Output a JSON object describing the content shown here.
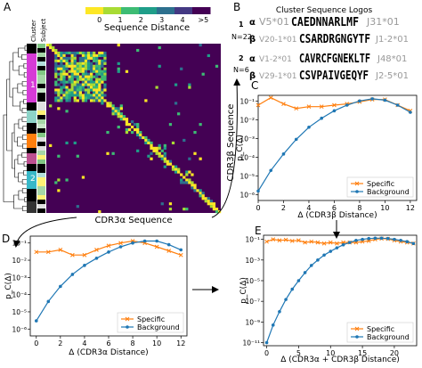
{
  "figure": {
    "panels": {
      "A": {
        "label": "A",
        "colorbar_title": "Sequence Distance",
        "colorbar_ticks": [
          "0",
          "1",
          "2",
          "3",
          "4",
          ">5"
        ],
        "colorbar_colors": [
          "#fde725",
          "#a8db34",
          "#3dbc74",
          "#1f9e89",
          "#2d708e",
          "#443983",
          "#440154"
        ],
        "column_labels": [
          "Cluster",
          "Subject"
        ],
        "cluster_markers": [
          "1",
          "2"
        ],
        "x_axis_label": "CDR3α Sequence",
        "y_axis_label": "CDR3β Sequence"
      },
      "B": {
        "label": "B",
        "title": "Cluster Sequence Logos",
        "clusters": [
          {
            "id": "1",
            "n_label": "N=22",
            "alpha": {
              "chain": "α",
              "v_gene": "V5*01",
              "logo": "CAEDNNARLMF",
              "j_gene": "J31*01"
            },
            "beta": {
              "chain": "β",
              "v_gene": "V20-1*01",
              "logo": "CSARDRGNGYTF",
              "j_gene": "J1-2*01"
            }
          },
          {
            "id": "2",
            "n_label": "N=6",
            "alpha": {
              "chain": "α",
              "v_gene": "V1-2*01",
              "logo": "CAVRCFGNEKLTF",
              "j_gene": "J48*01"
            },
            "beta": {
              "chain": "β",
              "v_gene": "V29-1*01",
              "logo": "CSVPAIVGEQYF",
              "j_gene": "J2-5*01"
            }
          }
        ]
      },
      "C": {
        "label": "C"
      },
      "D": {
        "label": "D"
      },
      "E": {
        "label": "E"
      }
    }
  },
  "chart_data": [
    {
      "panel": "C",
      "type": "line",
      "scale_y": "log",
      "xlabel": "Δ (CDR3β Distance)",
      "ylabel": "p_C(Δ)",
      "xlim": [
        0,
        12.5
      ],
      "ylim_exp": [
        -6.3,
        -0.7
      ],
      "x_ticks": [
        0,
        2,
        4,
        6,
        8,
        10,
        12
      ],
      "y_ticks": [
        "10⁻⁶",
        "10⁻⁵",
        "10⁻⁴",
        "10⁻³",
        "10⁻²",
        "10⁻¹"
      ],
      "y_tick_exps": [
        -6,
        -5,
        -4,
        -3,
        -2,
        -1
      ],
      "legend": [
        "Specific",
        "Background"
      ],
      "series": [
        {
          "name": "Specific",
          "color": "#ff7f0e",
          "marker": "x",
          "x": [
            0,
            1,
            2,
            3,
            4,
            5,
            6,
            7,
            8,
            9,
            10,
            11,
            12
          ],
          "y": [
            0.06,
            0.15,
            0.07,
            0.04,
            0.05,
            0.05,
            0.06,
            0.07,
            0.09,
            0.12,
            0.12,
            0.06,
            0.03
          ]
        },
        {
          "name": "Background",
          "color": "#1f77b4",
          "marker": "o",
          "x": [
            0,
            1,
            2,
            3,
            4,
            5,
            6,
            7,
            8,
            9,
            10,
            11,
            12
          ],
          "y": [
            1.6e-06,
            2e-05,
            0.00015,
            0.0009,
            0.004,
            0.012,
            0.03,
            0.06,
            0.1,
            0.13,
            0.11,
            0.06,
            0.025
          ]
        }
      ]
    },
    {
      "panel": "D",
      "type": "line",
      "scale_y": "log",
      "xlabel": "Δ (CDR3α Distance)",
      "ylabel": "p_C(Δ)",
      "xlim": [
        -0.5,
        12.5
      ],
      "ylim_exp": [
        -6.4,
        -0.6
      ],
      "x_ticks": [
        0,
        2,
        4,
        6,
        8,
        10,
        12
      ],
      "y_ticks": [
        "10⁻⁶",
        "10⁻⁵",
        "10⁻⁴",
        "10⁻³",
        "10⁻²",
        "10⁻¹"
      ],
      "y_tick_exps": [
        -6,
        -5,
        -4,
        -3,
        -2,
        -1
      ],
      "legend": [
        "Specific",
        "Background"
      ],
      "series": [
        {
          "name": "Specific",
          "color": "#ff7f0e",
          "marker": "x",
          "x": [
            0,
            1,
            2,
            3,
            4,
            5,
            6,
            7,
            8,
            9,
            10,
            11,
            12
          ],
          "y": [
            0.03,
            0.03,
            0.04,
            0.02,
            0.02,
            0.04,
            0.07,
            0.1,
            0.13,
            0.1,
            0.06,
            0.035,
            0.02
          ]
        },
        {
          "name": "Background",
          "color": "#1f77b4",
          "marker": "o",
          "x": [
            0,
            1,
            2,
            3,
            4,
            5,
            6,
            7,
            8,
            9,
            10,
            11,
            12
          ],
          "y": [
            3e-06,
            4e-05,
            0.0003,
            0.0015,
            0.005,
            0.013,
            0.03,
            0.06,
            0.1,
            0.13,
            0.13,
            0.08,
            0.04
          ]
        }
      ]
    },
    {
      "panel": "E",
      "type": "line",
      "scale_y": "log",
      "xlabel": "Δ (CDR3α + CDR3β Distance)",
      "ylabel": "p_C(Δ)",
      "xlim": [
        -0.5,
        23.5
      ],
      "ylim_exp": [
        -11.3,
        -0.6
      ],
      "x_ticks": [
        0,
        5,
        10,
        15,
        20
      ],
      "y_ticks": [
        "10⁻¹¹",
        "10⁻⁹",
        "10⁻⁷",
        "10⁻⁵",
        "10⁻³",
        "10⁻¹"
      ],
      "y_tick_exps": [
        -11,
        -9,
        -7,
        -5,
        -3,
        -1
      ],
      "legend": [
        "Specific",
        "Background"
      ],
      "series": [
        {
          "name": "Specific",
          "color": "#ff7f0e",
          "marker": "x",
          "x": [
            0,
            1,
            2,
            3,
            4,
            5,
            6,
            7,
            8,
            9,
            10,
            11,
            12,
            13,
            14,
            15,
            16,
            17,
            18,
            19,
            20,
            21,
            22,
            23
          ],
          "y": [
            0.06,
            0.1,
            0.08,
            0.09,
            0.07,
            0.08,
            0.05,
            0.06,
            0.05,
            0.04,
            0.05,
            0.04,
            0.05,
            0.05,
            0.05,
            0.06,
            0.07,
            0.1,
            0.12,
            0.11,
            0.08,
            0.06,
            0.05,
            0.04
          ]
        },
        {
          "name": "Background",
          "color": "#1f77b4",
          "marker": "o",
          "x": [
            0,
            1,
            2,
            3,
            4,
            5,
            6,
            7,
            8,
            9,
            10,
            11,
            12,
            13,
            14,
            15,
            16,
            17,
            18,
            19,
            20,
            21,
            22,
            23
          ],
          "y": [
            1e-11,
            5e-10,
            1e-08,
            1.5e-07,
            1.5e-06,
            1e-05,
            6e-05,
            0.0003,
            0.001,
            0.003,
            0.007,
            0.015,
            0.03,
            0.05,
            0.08,
            0.1,
            0.12,
            0.13,
            0.13,
            0.12,
            0.1,
            0.08,
            0.06,
            0.04
          ]
        }
      ]
    }
  ]
}
